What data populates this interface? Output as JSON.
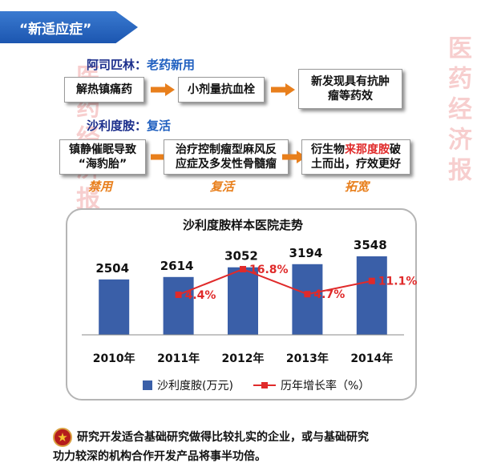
{
  "banner": {
    "text": "“新适应症”"
  },
  "watermark": {
    "text": "医药经济报"
  },
  "aspirin": {
    "name": "阿司匹林：",
    "tag": "老药新用",
    "steps": [
      "解热镇痛药",
      "小剂量抗血栓",
      "新发现具有抗肿瘤等药效"
    ]
  },
  "thalidomide": {
    "name": "沙利度胺：",
    "tag": "复活",
    "steps": [
      {
        "line1": "镇静催眠导致",
        "line2": "“海豹胎”"
      },
      {
        "line1": "治疗控制瘤型麻风反",
        "line2": "应症及多发性骨髓瘤"
      },
      {
        "pre": "衍生物",
        "highlight": "来那度胺",
        "post": "破",
        "line2": "土而出，疗效更好"
      }
    ],
    "captions": [
      "禁用",
      "复活",
      "拓宽"
    ]
  },
  "chart_data": {
    "type": "bar+line",
    "title": "沙利度胺样本医院走势",
    "categories": [
      "2010年",
      "2011年",
      "2012年",
      "2013年",
      "2014年"
    ],
    "series": [
      {
        "name": "沙利度胺(万元)",
        "kind": "bar",
        "color": "#3a5fa8",
        "values": [
          2504,
          2614,
          3052,
          3194,
          3548
        ],
        "labels": [
          "2504",
          "2614",
          "3052",
          "3194",
          "3548"
        ]
      },
      {
        "name": "历年增长率（%）",
        "kind": "line",
        "color": "#e02a2a",
        "values": [
          null,
          4.4,
          16.8,
          4.7,
          11.1
        ],
        "labels": [
          "",
          "4.4%",
          "16.8%",
          "4.7%",
          "11.1%"
        ]
      }
    ],
    "ylim": [
      0,
      4200
    ],
    "y2lim": [
      -15,
      30
    ],
    "legend_position": "bottom",
    "grid": false
  },
  "footer": {
    "icon": "star-icon",
    "line1": "研究开发适合基础研究做得比较扎实的企业，或与基础研究",
    "line2": "功力较深的机构合作开发产品将事半功倍。"
  }
}
